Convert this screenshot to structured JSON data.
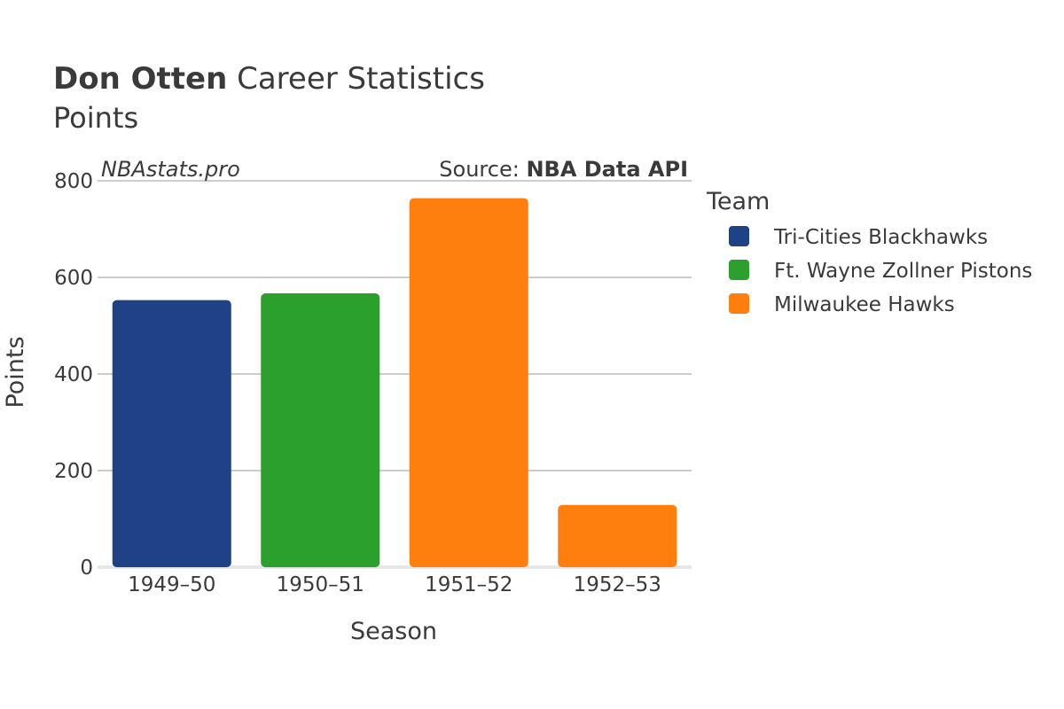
{
  "title": {
    "bold": "Don Otten",
    "rest": " Career Statistics",
    "subtitle": "Points"
  },
  "watermark": "NBAstats.pro",
  "source": {
    "prefix": "Source: ",
    "name": "NBA Data API"
  },
  "colors": {
    "Tri-Cities Blackhawks": "#1f4287",
    "Ft. Wayne Zollner Pistons": "#2ca02c",
    "Milwaukee Hawks": "#ff7f0e",
    "grid": "#bbbbbb",
    "text": "#3a3a3a"
  },
  "chart_data": {
    "type": "bar",
    "title": "Don Otten Career Statistics",
    "subtitle": "Points",
    "xlabel": "Season",
    "ylabel": "Points",
    "ylim": [
      0,
      800
    ],
    "yticks": [
      0,
      200,
      400,
      600,
      800
    ],
    "grid": true,
    "legend_title": "Team",
    "legend_position": "right",
    "categories": [
      "1949–50",
      "1950–51",
      "1951–52",
      "1952–53"
    ],
    "bars": [
      {
        "season": "1949–50",
        "team": "Tri-Cities Blackhawks",
        "value": 553
      },
      {
        "season": "1950–51",
        "team": "Ft. Wayne Zollner Pistons",
        "value": 567
      },
      {
        "season": "1951–52",
        "team": "Milwaukee Hawks",
        "value": 764
      },
      {
        "season": "1952–53",
        "team": "Milwaukee Hawks",
        "value": 129
      }
    ],
    "legend": [
      "Tri-Cities Blackhawks",
      "Ft. Wayne Zollner Pistons",
      "Milwaukee Hawks"
    ]
  }
}
